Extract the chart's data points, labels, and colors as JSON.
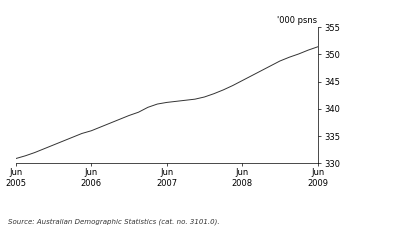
{
  "ylabel": "'000 psns",
  "source": "Source: Australian Demographic Statistics (cat. no. 3101.0).",
  "ylim": [
    330,
    355
  ],
  "yticks": [
    330,
    335,
    340,
    345,
    350,
    355
  ],
  "xtick_labels": [
    "Jun\n2005",
    "Jun\n2006",
    "Jun\n2007",
    "Jun\n2008",
    "Jun\n2009"
  ],
  "xtick_positions": [
    0,
    4,
    8,
    12,
    16
  ],
  "line_color": "#333333",
  "background_color": "#ffffff",
  "x": [
    0,
    0.5,
    1,
    1.5,
    2,
    2.5,
    3,
    3.5,
    4,
    4.5,
    5,
    5.5,
    6,
    6.5,
    7,
    7.5,
    8,
    8.5,
    9,
    9.5,
    10,
    10.5,
    11,
    11.5,
    12,
    12.5,
    13,
    13.5,
    14,
    14.5,
    15,
    15.5,
    16
  ],
  "y": [
    330.9,
    331.4,
    332.0,
    332.7,
    333.4,
    334.1,
    334.8,
    335.5,
    336.0,
    336.7,
    337.4,
    338.1,
    338.8,
    339.4,
    340.3,
    340.9,
    341.2,
    341.4,
    341.6,
    341.8,
    342.2,
    342.8,
    343.5,
    344.3,
    345.2,
    346.1,
    347.0,
    347.9,
    348.8,
    349.5,
    350.1,
    350.8,
    351.4
  ]
}
